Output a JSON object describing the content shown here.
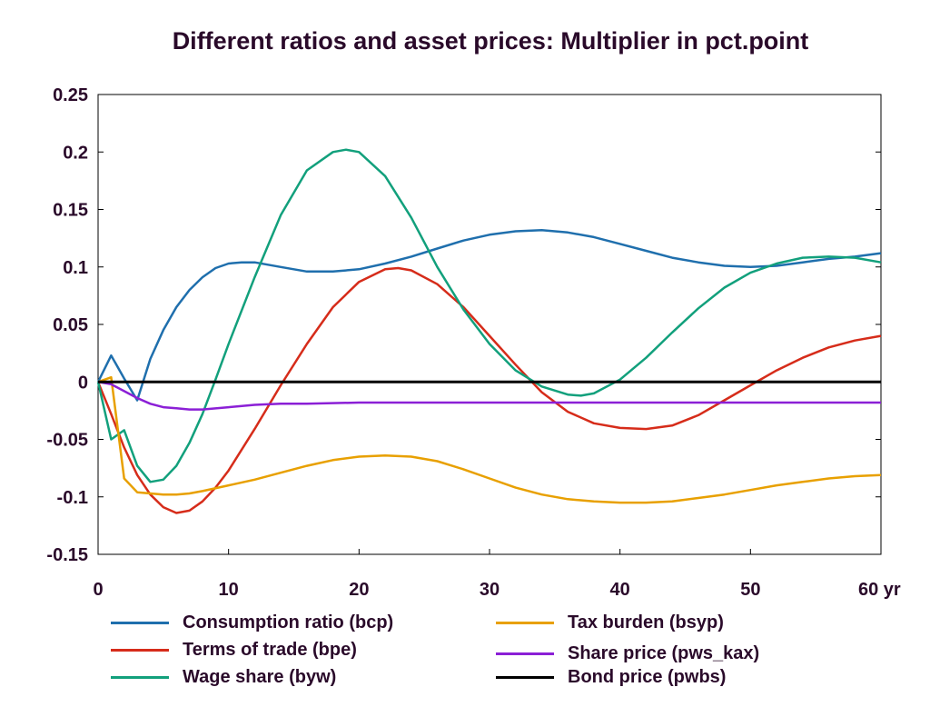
{
  "chart_data": {
    "type": "line",
    "title": "Different ratios and asset prices: Multiplier in pct.point",
    "x_unit_label": "yr",
    "xlim": [
      0,
      60
    ],
    "ylim": [
      -0.15,
      0.25
    ],
    "x_ticks": [
      0,
      10,
      20,
      30,
      40,
      50,
      60
    ],
    "x_tick_labels": [
      "0",
      "10",
      "20",
      "30",
      "40",
      "50",
      "60 yr"
    ],
    "y_ticks": [
      -0.15,
      -0.1,
      -0.05,
      0,
      0.05,
      0.1,
      0.15,
      0.2,
      0.25
    ],
    "y_tick_labels": [
      "-0.15",
      "-0.1",
      "-0.05",
      "0",
      "0.05",
      "0.1",
      "0.15",
      "0.2",
      "0.25"
    ],
    "grid": false,
    "legend_position": "bottom",
    "series": [
      {
        "name": "Consumption ratio (bcp)",
        "color": "#1f6fad",
        "x": [
          0,
          1,
          2,
          3,
          4,
          5,
          6,
          7,
          8,
          9,
          10,
          11,
          12,
          14,
          16,
          18,
          20,
          22,
          24,
          26,
          28,
          30,
          32,
          34,
          36,
          38,
          40,
          42,
          44,
          46,
          48,
          50,
          52,
          54,
          56,
          58,
          60
        ],
        "y": [
          0,
          0.023,
          0.003,
          -0.016,
          0.02,
          0.045,
          0.065,
          0.08,
          0.091,
          0.099,
          0.103,
          0.104,
          0.104,
          0.1,
          0.096,
          0.096,
          0.098,
          0.103,
          0.109,
          0.116,
          0.123,
          0.128,
          0.131,
          0.132,
          0.13,
          0.126,
          0.12,
          0.114,
          0.108,
          0.104,
          0.101,
          0.1,
          0.101,
          0.104,
          0.107,
          0.109,
          0.112
        ]
      },
      {
        "name": "Terms of trade (bpe)",
        "color": "#d62c1a",
        "x": [
          0,
          1,
          2,
          3,
          4,
          5,
          6,
          7,
          8,
          9,
          10,
          12,
          14,
          16,
          18,
          20,
          22,
          23,
          24,
          26,
          28,
          30,
          32,
          34,
          36,
          38,
          40,
          42,
          44,
          46,
          48,
          50,
          52,
          54,
          56,
          58,
          60
        ],
        "y": [
          0,
          -0.028,
          -0.057,
          -0.081,
          -0.098,
          -0.109,
          -0.114,
          -0.112,
          -0.104,
          -0.092,
          -0.077,
          -0.041,
          -0.003,
          0.033,
          0.065,
          0.087,
          0.098,
          0.099,
          0.097,
          0.085,
          0.065,
          0.04,
          0.015,
          -0.009,
          -0.026,
          -0.036,
          -0.04,
          -0.041,
          -0.038,
          -0.029,
          -0.016,
          -0.003,
          0.01,
          0.021,
          0.03,
          0.036,
          0.04
        ]
      },
      {
        "name": "Wage share (byw)",
        "color": "#12a07c",
        "x": [
          0,
          1,
          2,
          3,
          4,
          5,
          6,
          7,
          8,
          9,
          10,
          12,
          14,
          16,
          18,
          19,
          20,
          22,
          24,
          26,
          28,
          30,
          32,
          34,
          36,
          37,
          38,
          40,
          42,
          44,
          46,
          48,
          50,
          52,
          54,
          56,
          58,
          60
        ],
        "y": [
          0,
          -0.05,
          -0.042,
          -0.073,
          -0.087,
          -0.085,
          -0.073,
          -0.053,
          -0.028,
          0.002,
          0.033,
          0.091,
          0.145,
          0.184,
          0.2,
          0.202,
          0.2,
          0.179,
          0.143,
          0.1,
          0.063,
          0.033,
          0.01,
          -0.004,
          -0.011,
          -0.012,
          -0.01,
          0.002,
          0.021,
          0.043,
          0.064,
          0.082,
          0.095,
          0.103,
          0.108,
          0.109,
          0.108,
          0.104
        ]
      },
      {
        "name": "Tax burden (bsyp)",
        "color": "#e8a000",
        "x": [
          0,
          1,
          2,
          3,
          4,
          5,
          6,
          7,
          8,
          10,
          12,
          14,
          16,
          18,
          20,
          22,
          24,
          26,
          28,
          30,
          32,
          34,
          36,
          38,
          40,
          42,
          44,
          46,
          48,
          50,
          52,
          54,
          56,
          58,
          60
        ],
        "y": [
          0,
          0.004,
          -0.084,
          -0.096,
          -0.097,
          -0.098,
          -0.098,
          -0.097,
          -0.095,
          -0.09,
          -0.085,
          -0.079,
          -0.073,
          -0.068,
          -0.065,
          -0.064,
          -0.065,
          -0.069,
          -0.076,
          -0.084,
          -0.092,
          -0.098,
          -0.102,
          -0.104,
          -0.105,
          -0.105,
          -0.104,
          -0.101,
          -0.098,
          -0.094,
          -0.09,
          -0.087,
          -0.084,
          -0.082,
          -0.081
        ]
      },
      {
        "name": "Share price (pws_kax)",
        "color": "#8b1fd6",
        "x": [
          0,
          1,
          2,
          3,
          4,
          5,
          6,
          7,
          8,
          10,
          12,
          14,
          16,
          20,
          25,
          30,
          40,
          50,
          60
        ],
        "y": [
          0,
          -0.002,
          -0.008,
          -0.014,
          -0.019,
          -0.022,
          -0.023,
          -0.024,
          -0.024,
          -0.022,
          -0.02,
          -0.019,
          -0.019,
          -0.018,
          -0.018,
          -0.018,
          -0.018,
          -0.018,
          -0.018
        ]
      },
      {
        "name": "Bond price (pwbs)",
        "color": "#000000",
        "x": [
          0,
          60
        ],
        "y": [
          0,
          0
        ]
      }
    ]
  }
}
